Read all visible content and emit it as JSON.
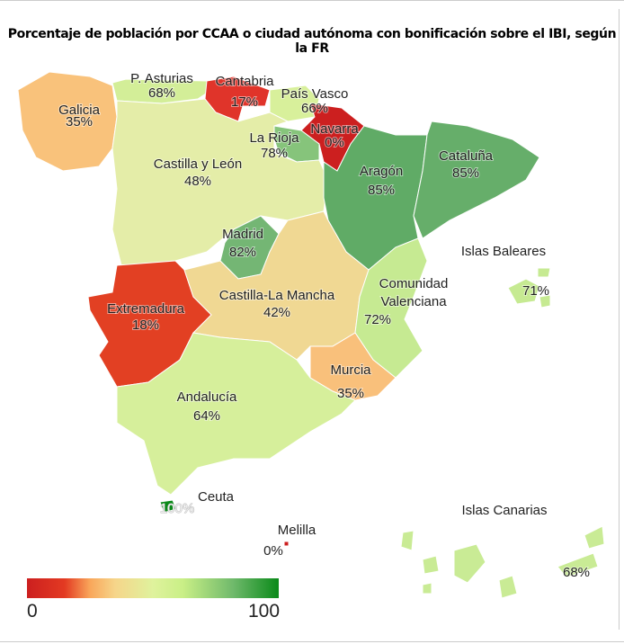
{
  "title": "Porcentaje de población por CCAA o ciudad autónoma con bonificación sobre el IBI, según la FR",
  "chart_data": {
    "type": "choropleth",
    "title": "Porcentaje de población por CCAA o ciudad autónoma con bonificación sobre el IBI, según la FR",
    "unit": "%",
    "regions": [
      {
        "id": "galicia",
        "name": "Galicia",
        "value": 35,
        "label": "35%",
        "color": "#f9c27b"
      },
      {
        "id": "asturias",
        "name": "P. Asturias",
        "value": 68,
        "label": "68%",
        "color": "#d3ee98"
      },
      {
        "id": "cantabria",
        "name": "Cantabria",
        "value": 17,
        "label": "17%",
        "color": "#e0342a"
      },
      {
        "id": "pais-vasco",
        "name": "País Vasco",
        "value": 66,
        "label": "66%",
        "color": "#d8f09b"
      },
      {
        "id": "navarra",
        "name": "Navarra",
        "value": 0,
        "label": "0%",
        "color": "#cc1f1f"
      },
      {
        "id": "la-rioja",
        "name": "La Rioja",
        "value": 78,
        "label": "78%",
        "color": "#86c47b"
      },
      {
        "id": "castilla-leon",
        "name": "Castilla y León",
        "value": 48,
        "label": "48%",
        "color": "#e4eda8"
      },
      {
        "id": "aragon",
        "name": "Aragón",
        "value": 85,
        "label": "85%",
        "color": "#60ab66"
      },
      {
        "id": "cataluna",
        "name": "Cataluña",
        "value": 85,
        "label": "85%",
        "color": "#66ae6a"
      },
      {
        "id": "madrid",
        "name": "Madrid",
        "value": 82,
        "label": "82%",
        "color": "#74b674"
      },
      {
        "id": "extremadura",
        "name": "Extremadura",
        "value": 18,
        "label": "18%",
        "color": "#e24023"
      },
      {
        "id": "castilla-la-mancha",
        "name": "Castilla-La Mancha",
        "value": 42,
        "label": "42%",
        "color": "#f0d893"
      },
      {
        "id": "valencia",
        "name": "Comunidad Valenciana",
        "value": 72,
        "label": "72%",
        "color": "#c6ea92"
      },
      {
        "id": "murcia",
        "name": "Murcia",
        "value": 35,
        "label": "35%",
        "color": "#f9c07b"
      },
      {
        "id": "andalucia",
        "name": "Andalucía",
        "value": 64,
        "label": "64%",
        "color": "#d6ef9b"
      },
      {
        "id": "ceuta",
        "name": "Ceuta",
        "value": 100,
        "label": "100%",
        "color": "#0a8a19"
      },
      {
        "id": "melilla",
        "name": "Melilla",
        "value": 0,
        "label": "0%",
        "color": "#cc1f1f"
      },
      {
        "id": "baleares",
        "name": "Islas Baleares",
        "value": 71,
        "label": "71%",
        "color": "#c6ea92"
      },
      {
        "id": "canarias",
        "name": "Islas Canarias",
        "value": 68,
        "label": "68%",
        "color": "#c9eb95"
      }
    ],
    "legend": {
      "min": 0,
      "max": 100,
      "min_label": "0",
      "max_label": "100",
      "placement": "bottom-left",
      "colors": [
        "#cc1f1f",
        "#f6d58a",
        "#dff29d",
        "#0a8a19"
      ]
    }
  }
}
